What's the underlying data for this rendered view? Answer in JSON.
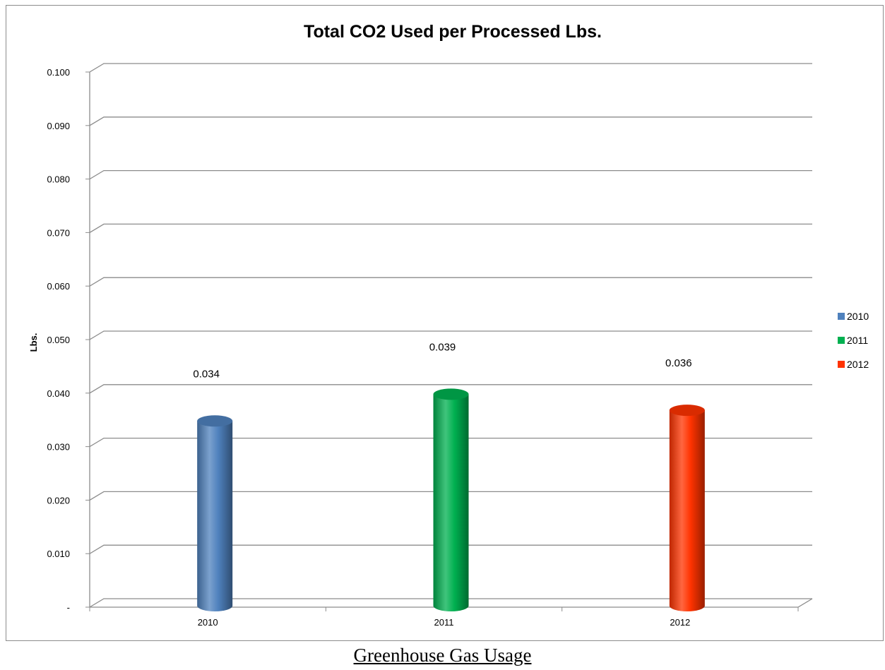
{
  "caption": "Greenhouse Gas Usage",
  "chart_data": {
    "type": "bar",
    "title": "Total CO2 Used per Processed Lbs.",
    "xlabel": "",
    "ylabel": "Lbs.",
    "categories": [
      "2010",
      "2011",
      "2012"
    ],
    "series": [
      {
        "name": "2010",
        "values": [
          0.034,
          null,
          null
        ],
        "color": "#4f81bd"
      },
      {
        "name": "2011",
        "values": [
          null,
          0.039,
          null
        ],
        "color": "#00b050"
      },
      {
        "name": "2012",
        "values": [
          null,
          null,
          0.036
        ],
        "color": "#ff3300"
      }
    ],
    "data_labels": [
      "0.034",
      "0.039",
      "0.036"
    ],
    "ylim": [
      0,
      0.1
    ],
    "yticks": [
      "-",
      "0.010",
      "0.020",
      "0.030",
      "0.040",
      "0.050",
      "0.060",
      "0.070",
      "0.080",
      "0.090",
      "0.100"
    ],
    "grid": true,
    "legend": {
      "position": "right",
      "entries": [
        "2010",
        "2011",
        "2012"
      ]
    }
  }
}
